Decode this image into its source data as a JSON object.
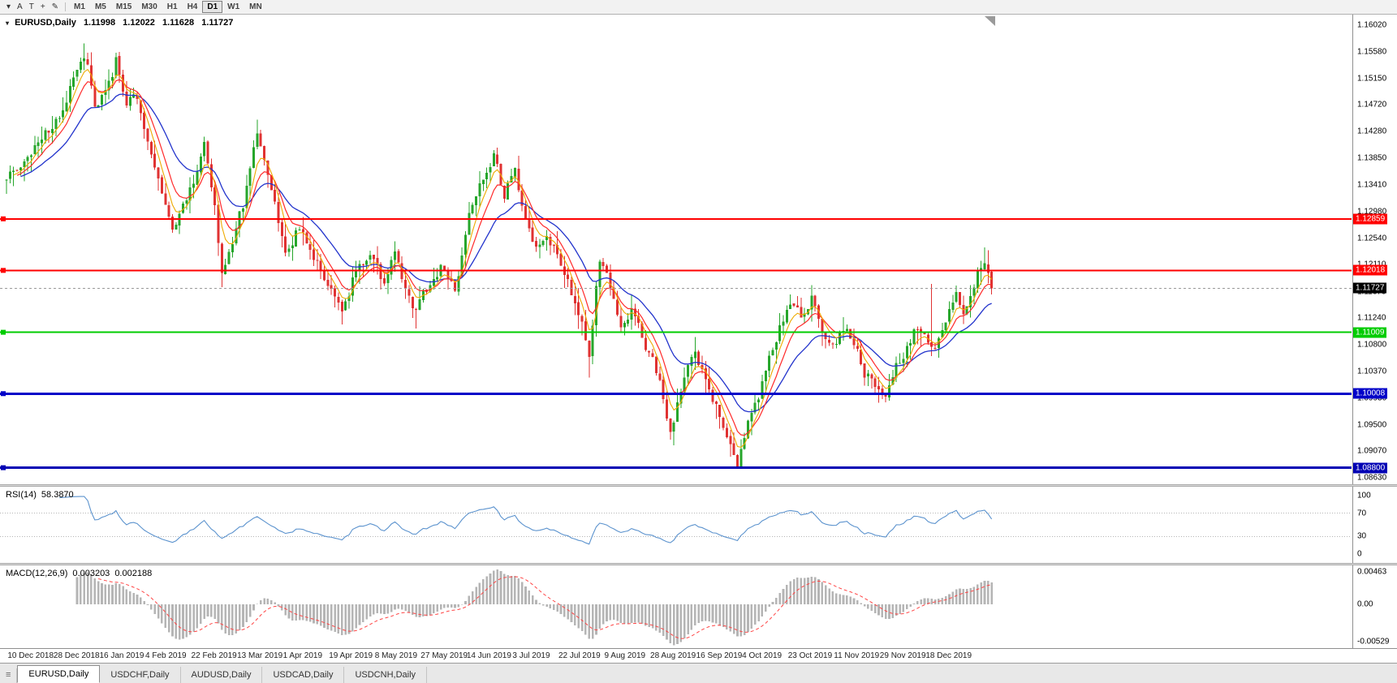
{
  "toolbar": {
    "icons": [
      {
        "name": "collapse-caret-icon",
        "glyph": "▾"
      },
      {
        "name": "text-label-tool",
        "glyph": "A"
      },
      {
        "name": "text-box-tool",
        "glyph": "T"
      },
      {
        "name": "crosshair-tool",
        "glyph": "+"
      },
      {
        "name": "annotation-tool",
        "glyph": "✎"
      }
    ],
    "timeframes": [
      {
        "label": "M1",
        "active": false
      },
      {
        "label": "M5",
        "active": false
      },
      {
        "label": "M15",
        "active": false
      },
      {
        "label": "M30",
        "active": false
      },
      {
        "label": "H1",
        "active": false
      },
      {
        "label": "H4",
        "active": false
      },
      {
        "label": "D1",
        "active": true
      },
      {
        "label": "W1",
        "active": false
      },
      {
        "label": "MN",
        "active": false
      }
    ]
  },
  "chart": {
    "symbol_period": "EURUSD,Daily",
    "ohlc": {
      "open": "1.11998",
      "high": "1.12022",
      "low": "1.11628",
      "close": "1.11727"
    },
    "price_axis_labels": [
      "1.16020",
      "1.15580",
      "1.15150",
      "1.14720",
      "1.14280",
      "1.13850",
      "1.13410",
      "1.12980",
      "1.12540",
      "1.12110",
      "1.11670",
      "1.11240",
      "1.10800",
      "1.10370",
      "1.09930",
      "1.09500",
      "1.09070",
      "1.08630"
    ],
    "levels": [
      {
        "label": "1.12859",
        "value": 1.12859,
        "color": "#ff0000",
        "thickness": 2
      },
      {
        "label": "1.12018",
        "value": 1.12018,
        "color": "#ff0000",
        "thickness": 2
      },
      {
        "label": "1.11009",
        "value": 1.11009,
        "color": "#00cc00",
        "thickness": 2
      },
      {
        "label": "1.10008",
        "value": 1.10008,
        "color": "#0000c8",
        "thickness": 3
      },
      {
        "label": "1.08800",
        "value": 1.088,
        "color": "#0000b4",
        "thickness": 3
      }
    ],
    "current_price": {
      "label": "1.11727",
      "value": 1.11727,
      "badge_color": "#000000"
    },
    "colors": {
      "up": "#26a62b",
      "down": "#e03232",
      "ma_fast": "#eeaa00",
      "ma_mid": "#ff2a2a",
      "ma_slow": "#2233cc",
      "background": "#ffffff"
    },
    "candle_count": 280,
    "price_path": [
      [
        0,
        1.1345
      ],
      [
        6,
        1.1385
      ],
      [
        12,
        1.143
      ],
      [
        16,
        1.1468
      ],
      [
        20,
        1.153
      ],
      [
        22,
        1.1558
      ],
      [
        25,
        1.147
      ],
      [
        28,
        1.15
      ],
      [
        31,
        1.1542
      ],
      [
        34,
        1.148
      ],
      [
        36,
        1.1498
      ],
      [
        39,
        1.143
      ],
      [
        43,
        1.135
      ],
      [
        47,
        1.1262
      ],
      [
        51,
        1.132
      ],
      [
        56,
        1.1402
      ],
      [
        59,
        1.13
      ],
      [
        61,
        1.1192
      ],
      [
        64,
        1.125
      ],
      [
        68,
        1.133
      ],
      [
        71,
        1.1428
      ],
      [
        75,
        1.133
      ],
      [
        79,
        1.1232
      ],
      [
        83,
        1.1268
      ],
      [
        87,
        1.123
      ],
      [
        91,
        1.118
      ],
      [
        95,
        1.1132
      ],
      [
        99,
        1.1198
      ],
      [
        103,
        1.1228
      ],
      [
        107,
        1.118
      ],
      [
        110,
        1.1228
      ],
      [
        113,
        1.117
      ],
      [
        116,
        1.1136
      ],
      [
        120,
        1.118
      ],
      [
        124,
        1.1208
      ],
      [
        127,
        1.1162
      ],
      [
        131,
        1.1288
      ],
      [
        134,
        1.1338
      ],
      [
        138,
        1.1388
      ],
      [
        141,
        1.133
      ],
      [
        144,
        1.1368
      ],
      [
        147,
        1.1282
      ],
      [
        150,
        1.1232
      ],
      [
        153,
        1.1268
      ],
      [
        156,
        1.1222
      ],
      [
        160,
        1.1162
      ],
      [
        163,
        1.1122
      ],
      [
        165,
        1.1062
      ],
      [
        168,
        1.1218
      ],
      [
        171,
        1.118
      ],
      [
        174,
        1.1112
      ],
      [
        177,
        1.114
      ],
      [
        180,
        1.1092
      ],
      [
        184,
        1.1042
      ],
      [
        188,
        1.0936
      ],
      [
        191,
        1.1
      ],
      [
        194,
        1.1068
      ],
      [
        197,
        1.1042
      ],
      [
        200,
        1.0992
      ],
      [
        203,
        1.0942
      ],
      [
        207,
        1.0892
      ],
      [
        210,
        1.0958
      ],
      [
        213,
        1.0992
      ],
      [
        216,
        1.1058
      ],
      [
        219,
        1.1108
      ],
      [
        222,
        1.1148
      ],
      [
        225,
        1.1128
      ],
      [
        228,
        1.1158
      ],
      [
        231,
        1.1102
      ],
      [
        234,
        1.1072
      ],
      [
        237,
        1.1108
      ],
      [
        240,
        1.1082
      ],
      [
        243,
        1.1032
      ],
      [
        246,
        1.1012
      ],
      [
        249,
        1.1002
      ],
      [
        252,
        1.1048
      ],
      [
        255,
        1.1078
      ],
      [
        258,
        1.1108
      ],
      [
        261,
        1.1082
      ],
      [
        263,
        1.1072
      ],
      [
        265,
        1.1108
      ],
      [
        267,
        1.1138
      ],
      [
        269,
        1.1168
      ],
      [
        271,
        1.1132
      ],
      [
        273,
        1.1158
      ],
      [
        275,
        1.1198
      ],
      [
        277,
        1.1216
      ],
      [
        279,
        1.1173
      ]
    ],
    "forced_wicks": [
      [
        22,
        "high",
        1.1572
      ],
      [
        31,
        "high",
        1.1552
      ],
      [
        61,
        "low",
        1.1176
      ],
      [
        71,
        "high",
        1.1448
      ],
      [
        116,
        "low",
        1.1107
      ],
      [
        139,
        "high",
        1.1402
      ],
      [
        165,
        "low",
        1.1027
      ],
      [
        188,
        "low",
        1.0926
      ],
      [
        207,
        "low",
        1.0879
      ],
      [
        262,
        "high",
        1.118
      ],
      [
        262,
        "low",
        1.1062
      ],
      [
        277,
        "high",
        1.1239
      ]
    ]
  },
  "rsi": {
    "name": "RSI(14)",
    "value": "58.3870",
    "axis_labels": [
      "100",
      "70",
      "30",
      "0"
    ],
    "guide_levels": [
      70,
      30
    ],
    "line_color": "#5c93ce"
  },
  "macd": {
    "name": "MACD(12,26,9)",
    "value_main": "0.003203",
    "value_signal": "0.002188",
    "axis_labels": [
      "0.00463",
      "0.00",
      "-0.00529"
    ],
    "histogram_color": "#b5b5b5",
    "signal_color": "#ff4444"
  },
  "date_axis": [
    "10 Dec 2018",
    "28 Dec 2018",
    "16 Jan 2019",
    "4 Feb 2019",
    "22 Feb 2019",
    "13 Mar 2019",
    "1 Apr 2019",
    "19 Apr 2019",
    "8 May 2019",
    "27 May 2019",
    "14 Jun 2019",
    "3 Jul 2019",
    "22 Jul 2019",
    "9 Aug 2019",
    "28 Aug 2019",
    "16 Sep 2019",
    "4 Oct 2019",
    "23 Oct 2019",
    "11 Nov 2019",
    "29 Nov 2019",
    "18 Dec 2019"
  ],
  "tabs": [
    {
      "label": "EURUSD,Daily",
      "active": true
    },
    {
      "label": "USDCHF,Daily",
      "active": false
    },
    {
      "label": "AUDUSD,Daily",
      "active": false
    },
    {
      "label": "USDCAD,Daily",
      "active": false
    },
    {
      "label": "USDCNH,Daily",
      "active": false
    }
  ]
}
